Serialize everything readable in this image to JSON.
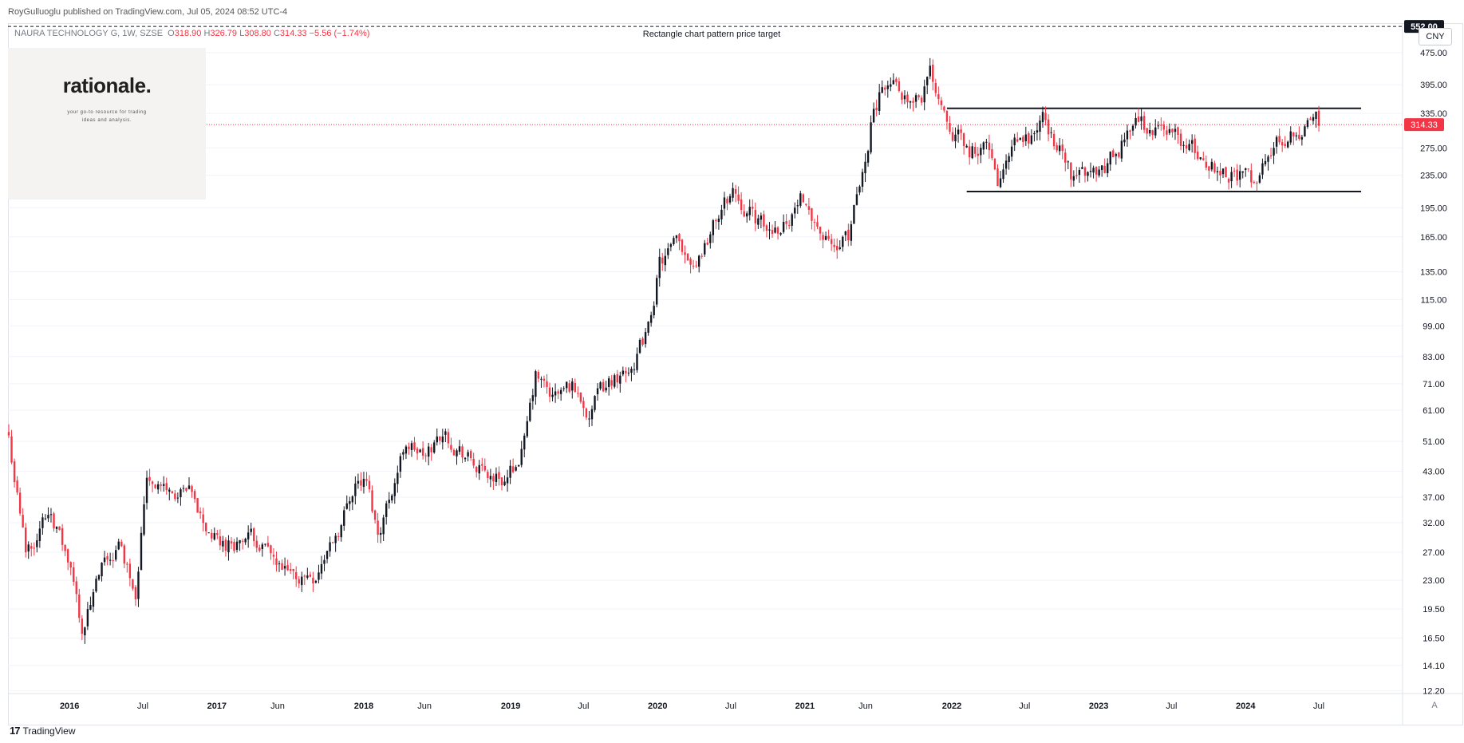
{
  "publisher_line": "RoyGulluoglu published on TradingView.com, Jul 05, 2024 08:52 UTC-4",
  "legend": {
    "symbol": "NAURA TECHNOLOGY G, 1W, SZSE",
    "o_label": "O",
    "o": "318.90",
    "h_label": "H",
    "h": "326.79",
    "l_label": "L",
    "l": "308.80",
    "c_label": "C",
    "c": "314.33",
    "change": "−5.56 (−1.74%)"
  },
  "logo": {
    "brand": "rationale.",
    "tagline_1": "your go-to resource for trading",
    "tagline_2": "ideas and analysis."
  },
  "currency_button": "CNY",
  "auto_button": "A",
  "footer_brand": "TradingView",
  "footer_mark": "17",
  "colors": {
    "up": "#131722",
    "down": "#f23645",
    "price_line": "#f23645",
    "grid": "#f0f3fa"
  },
  "chart_data": {
    "type": "candlestick",
    "title": "",
    "scale": "log",
    "interval": "1W",
    "y_ticks": [
      "12.20",
      "14.10",
      "16.50",
      "19.50",
      "23.00",
      "27.00",
      "32.00",
      "37.00",
      "43.00",
      "51.00",
      "61.00",
      "71.00",
      "83.00",
      "99.00",
      "115.00",
      "135.00",
      "165.00",
      "195.00",
      "235.00",
      "275.00",
      "335.00",
      "395.00",
      "475.00"
    ],
    "ylim": [
      12.2,
      552
    ],
    "x_ticks": [
      {
        "label": "2016",
        "bold": true,
        "date": "2016-01-01"
      },
      {
        "label": "Jul",
        "bold": false,
        "date": "2016-07-01"
      },
      {
        "label": "2017",
        "bold": true,
        "date": "2017-01-01"
      },
      {
        "label": "Jun",
        "bold": false,
        "date": "2017-06-01"
      },
      {
        "label": "2018",
        "bold": true,
        "date": "2018-01-01"
      },
      {
        "label": "Jun",
        "bold": false,
        "date": "2018-06-01"
      },
      {
        "label": "2019",
        "bold": true,
        "date": "2019-01-01"
      },
      {
        "label": "Jul",
        "bold": false,
        "date": "2019-07-01"
      },
      {
        "label": "2020",
        "bold": true,
        "date": "2020-01-01"
      },
      {
        "label": "Jul",
        "bold": false,
        "date": "2020-07-01"
      },
      {
        "label": "2021",
        "bold": true,
        "date": "2021-01-01"
      },
      {
        "label": "Jun",
        "bold": false,
        "date": "2021-06-01"
      },
      {
        "label": "2022",
        "bold": true,
        "date": "2022-01-01"
      },
      {
        "label": "Jul",
        "bold": false,
        "date": "2022-07-01"
      },
      {
        "label": "2023",
        "bold": true,
        "date": "2023-01-01"
      },
      {
        "label": "Jul",
        "bold": false,
        "date": "2023-07-01"
      },
      {
        "label": "2024",
        "bold": true,
        "date": "2024-01-01"
      },
      {
        "label": "Jul",
        "bold": false,
        "date": "2024-07-01"
      }
    ],
    "x_range": [
      "2015-08-01",
      "2025-01-25"
    ],
    "last_price": 314.33,
    "last_price_label": "314.33",
    "target_price": 552,
    "target_price_label": "552.00",
    "target_annotation": "Rectangle chart pattern price target",
    "rectangle": {
      "top": 345,
      "bottom": 214,
      "top_from": "2021-12-20",
      "bottom_from": "2022-02-07",
      "to": "2024-10-14"
    },
    "close_path": [
      {
        "date": "2015-08-03",
        "close": 52
      },
      {
        "date": "2015-09-14",
        "close": 27
      },
      {
        "date": "2015-11-16",
        "close": 35
      },
      {
        "date": "2016-01-04",
        "close": 24
      },
      {
        "date": "2016-02-01",
        "close": 17.5
      },
      {
        "date": "2016-03-21",
        "close": 24
      },
      {
        "date": "2016-05-02",
        "close": 28
      },
      {
        "date": "2016-06-13",
        "close": 22
      },
      {
        "date": "2016-07-11",
        "close": 43
      },
      {
        "date": "2016-09-05",
        "close": 38
      },
      {
        "date": "2016-10-24",
        "close": 37
      },
      {
        "date": "2016-12-05",
        "close": 31
      },
      {
        "date": "2017-01-09",
        "close": 28
      },
      {
        "date": "2017-03-06",
        "close": 29
      },
      {
        "date": "2017-04-17",
        "close": 29
      },
      {
        "date": "2017-06-05",
        "close": 24
      },
      {
        "date": "2017-07-10",
        "close": 23
      },
      {
        "date": "2017-09-04",
        "close": 24
      },
      {
        "date": "2017-11-06",
        "close": 32
      },
      {
        "date": "2017-12-11",
        "close": 41
      },
      {
        "date": "2018-01-08",
        "close": 40
      },
      {
        "date": "2018-02-05",
        "close": 30
      },
      {
        "date": "2018-03-05",
        "close": 37
      },
      {
        "date": "2018-04-16",
        "close": 51
      },
      {
        "date": "2018-06-04",
        "close": 46
      },
      {
        "date": "2018-07-16",
        "close": 54
      },
      {
        "date": "2018-09-03",
        "close": 48
      },
      {
        "date": "2018-10-22",
        "close": 42
      },
      {
        "date": "2018-12-24",
        "close": 41
      },
      {
        "date": "2019-02-04",
        "close": 50
      },
      {
        "date": "2019-03-04",
        "close": 73
      },
      {
        "date": "2019-04-15",
        "close": 65
      },
      {
        "date": "2019-06-03",
        "close": 70
      },
      {
        "date": "2019-07-15",
        "close": 61
      },
      {
        "date": "2019-09-02",
        "close": 71
      },
      {
        "date": "2019-10-28",
        "close": 80
      },
      {
        "date": "2019-12-09",
        "close": 96
      },
      {
        "date": "2020-01-06",
        "close": 140
      },
      {
        "date": "2020-02-17",
        "close": 155
      },
      {
        "date": "2020-04-06",
        "close": 145
      },
      {
        "date": "2020-05-18",
        "close": 175
      },
      {
        "date": "2020-07-06",
        "close": 215
      },
      {
        "date": "2020-08-17",
        "close": 190
      },
      {
        "date": "2020-09-28",
        "close": 168
      },
      {
        "date": "2020-11-09",
        "close": 180
      },
      {
        "date": "2021-01-04",
        "close": 210
      },
      {
        "date": "2021-02-22",
        "close": 160
      },
      {
        "date": "2021-03-22",
        "close": 150
      },
      {
        "date": "2021-04-19",
        "close": 165
      },
      {
        "date": "2021-05-24",
        "close": 230
      },
      {
        "date": "2021-06-21",
        "close": 350
      },
      {
        "date": "2021-07-19",
        "close": 400
      },
      {
        "date": "2021-09-06",
        "close": 380
      },
      {
        "date": "2021-10-18",
        "close": 380
      },
      {
        "date": "2021-11-08",
        "close": 420
      },
      {
        "date": "2021-12-13",
        "close": 350
      },
      {
        "date": "2022-01-10",
        "close": 300
      },
      {
        "date": "2022-02-14",
        "close": 265
      },
      {
        "date": "2022-03-21",
        "close": 290
      },
      {
        "date": "2022-04-25",
        "close": 220
      },
      {
        "date": "2022-06-06",
        "close": 270
      },
      {
        "date": "2022-07-18",
        "close": 290
      },
      {
        "date": "2022-08-15",
        "close": 320
      },
      {
        "date": "2022-09-26",
        "close": 270
      },
      {
        "date": "2022-10-24",
        "close": 235
      },
      {
        "date": "2022-12-05",
        "close": 240
      },
      {
        "date": "2023-01-16",
        "close": 245
      },
      {
        "date": "2023-03-06",
        "close": 290
      },
      {
        "date": "2023-04-03",
        "close": 335
      },
      {
        "date": "2023-05-08",
        "close": 300
      },
      {
        "date": "2023-06-19",
        "close": 310
      },
      {
        "date": "2023-07-31",
        "close": 280
      },
      {
        "date": "2023-09-11",
        "close": 260
      },
      {
        "date": "2023-10-23",
        "close": 245
      },
      {
        "date": "2023-12-04",
        "close": 240
      },
      {
        "date": "2024-01-15",
        "close": 225
      },
      {
        "date": "2024-02-19",
        "close": 250
      },
      {
        "date": "2024-03-18",
        "close": 280
      },
      {
        "date": "2024-04-29",
        "close": 305
      },
      {
        "date": "2024-06-03",
        "close": 310
      },
      {
        "date": "2024-06-24",
        "close": 330
      },
      {
        "date": "2024-07-01",
        "close": 314.33
      }
    ]
  }
}
